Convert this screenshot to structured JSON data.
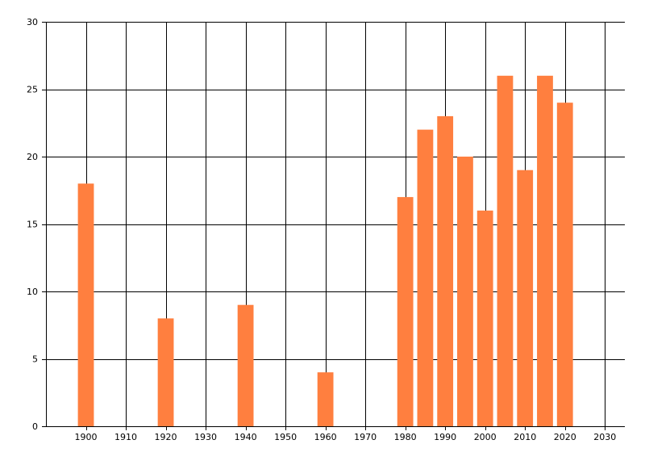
{
  "chart_data": {
    "type": "bar",
    "x": [
      1900,
      1920,
      1940,
      1960,
      1980,
      1985,
      1990,
      1995,
      2000,
      2005,
      2010,
      2015,
      2020
    ],
    "values": [
      18,
      8,
      9,
      4,
      17,
      22,
      23,
      20,
      16,
      26,
      19,
      26,
      24
    ],
    "xlim": [
      1890,
      2035
    ],
    "ylim": [
      0,
      30
    ],
    "xticks": [
      1900,
      1910,
      1920,
      1930,
      1940,
      1950,
      1960,
      1970,
      1980,
      1990,
      2000,
      2010,
      2020,
      2030
    ],
    "yticks": [
      0,
      5,
      10,
      15,
      20,
      25,
      30
    ],
    "bar_width_years": 4,
    "grid": true,
    "bar_color": "#ff7f3f",
    "title": "",
    "xlabel": "",
    "ylabel": ""
  }
}
